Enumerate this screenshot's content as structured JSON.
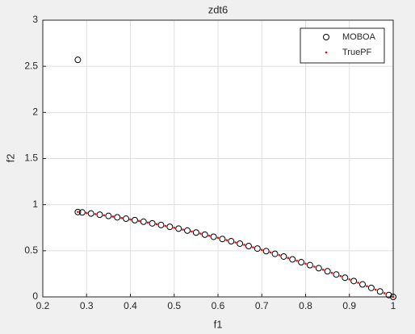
{
  "chart_data": {
    "type": "scatter",
    "title": "zdt6",
    "xlabel": "f1",
    "ylabel": "f2",
    "xlim": [
      0.2,
      1
    ],
    "xticks": [
      0.2,
      0.3,
      0.4,
      0.5,
      0.6,
      0.7,
      0.8,
      0.9,
      1
    ],
    "ylim": [
      0,
      3
    ],
    "yticks": [
      0,
      0.5,
      1,
      1.5,
      2,
      2.5,
      3
    ],
    "grid": true,
    "legend": "northeast",
    "series": [
      {
        "name": "MOBOA",
        "color": "#000000",
        "marker": "circle",
        "x": [
          0.28,
          0.28,
          0.29,
          0.31,
          0.33,
          0.35,
          0.37,
          0.39,
          0.41,
          0.43,
          0.45,
          0.47,
          0.49,
          0.51,
          0.53,
          0.55,
          0.57,
          0.59,
          0.61,
          0.63,
          0.65,
          0.67,
          0.69,
          0.71,
          0.73,
          0.75,
          0.77,
          0.79,
          0.81,
          0.83,
          0.85,
          0.87,
          0.89,
          0.91,
          0.93,
          0.95,
          0.97,
          0.99,
          1.0
        ],
        "values": [
          2.57,
          0.92,
          0.9159,
          0.9039,
          0.8911,
          0.8775,
          0.8631,
          0.8479,
          0.8319,
          0.8151,
          0.7975,
          0.7791,
          0.7599,
          0.7399,
          0.7191,
          0.6975,
          0.6751,
          0.6519,
          0.6279,
          0.6031,
          0.5775,
          0.5511,
          0.5239,
          0.4959,
          0.4671,
          0.4375,
          0.4071,
          0.3759,
          0.3439,
          0.3111,
          0.2775,
          0.2431,
          0.2079,
          0.1719,
          0.1351,
          0.0975,
          0.0591,
          0.0199,
          0
        ]
      },
      {
        "name": "TruePF",
        "color": "#ff0000",
        "marker": "dot",
        "x": [
          0.28,
          0.3,
          0.32,
          0.34,
          0.36,
          0.38,
          0.4,
          0.42,
          0.44,
          0.46,
          0.48,
          0.5,
          0.52,
          0.54,
          0.56,
          0.58,
          0.6,
          0.62,
          0.64,
          0.66,
          0.68,
          0.7,
          0.72,
          0.74,
          0.76,
          0.78,
          0.8,
          0.82,
          0.84,
          0.86,
          0.88,
          0.9,
          0.92,
          0.94,
          0.96,
          0.98,
          1.0
        ],
        "values": [
          0.9216,
          0.91,
          0.8976,
          0.8844,
          0.8704,
          0.8556,
          0.84,
          0.8236,
          0.8064,
          0.7884,
          0.7696,
          0.75,
          0.7296,
          0.7084,
          0.6864,
          0.6636,
          0.64,
          0.6156,
          0.5904,
          0.5644,
          0.5376,
          0.51,
          0.4816,
          0.4524,
          0.4224,
          0.3916,
          0.36,
          0.3276,
          0.2944,
          0.2604,
          0.2256,
          0.19,
          0.1536,
          0.1164,
          0.0784,
          0.0396,
          0
        ]
      }
    ]
  }
}
